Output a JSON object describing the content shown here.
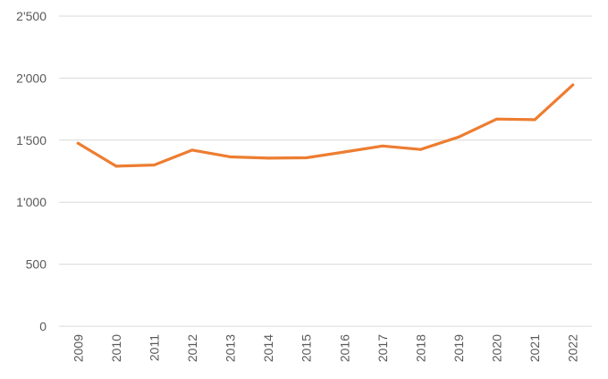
{
  "chart_data": {
    "type": "line",
    "title": "",
    "xlabel": "",
    "ylabel": "",
    "categories": [
      "2009",
      "2010",
      "2011",
      "2012",
      "2013",
      "2014",
      "2015",
      "2016",
      "2017",
      "2018",
      "2019",
      "2020",
      "2021",
      "2022"
    ],
    "series": [
      {
        "color": "#ed7d31",
        "values": [
          1475,
          1290,
          1300,
          1420,
          1365,
          1355,
          1358,
          1405,
          1453,
          1425,
          1525,
          1670,
          1665,
          1945
        ]
      }
    ],
    "ylim": [
      0,
      2500
    ],
    "yticks": [
      0,
      500,
      1000,
      1500,
      2000,
      2500
    ],
    "ytick_labels": [
      "0",
      "500",
      "1'000",
      "1'500",
      "2'000",
      "2'500"
    ],
    "grid": true,
    "legend": "none"
  }
}
